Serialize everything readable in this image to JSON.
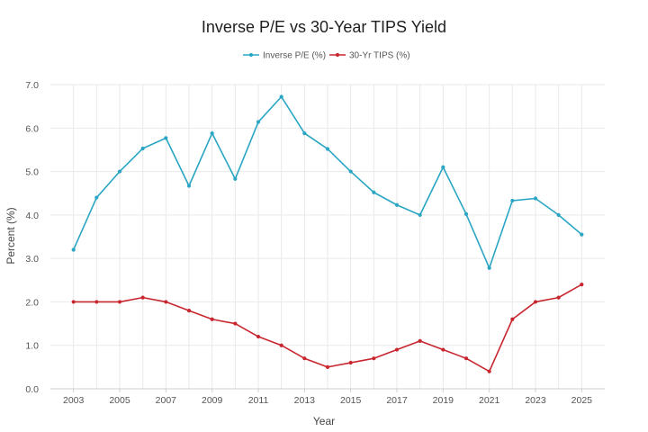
{
  "chart_data": {
    "type": "line",
    "title": "Inverse P/E vs 30-Year TIPS Yield",
    "xlabel": "Year",
    "ylabel": "Percent (%)",
    "x": [
      2003,
      2004,
      2005,
      2006,
      2007,
      2008,
      2009,
      2010,
      2011,
      2012,
      2013,
      2014,
      2015,
      2016,
      2017,
      2018,
      2019,
      2020,
      2021,
      2022,
      2023,
      2024,
      2025
    ],
    "xlim": [
      2002,
      2026
    ],
    "xticks": [
      "2003",
      "2005",
      "2007",
      "2009",
      "2011",
      "2013",
      "2015",
      "2017",
      "2019",
      "2021",
      "2023",
      "2025"
    ],
    "ylim": [
      0,
      7
    ],
    "yticks": [
      "0.0",
      "1.0",
      "2.0",
      "3.0",
      "4.0",
      "5.0",
      "6.0",
      "7.0"
    ],
    "grid": true,
    "legend_position": "top-center",
    "series": [
      {
        "name": "Inverse P/E (%)",
        "color": "#2aa6c4",
        "values": [
          3.2,
          4.4,
          5.0,
          5.53,
          5.77,
          4.67,
          5.88,
          4.83,
          6.14,
          6.72,
          5.88,
          5.52,
          5.0,
          4.52,
          4.23,
          4.0,
          5.1,
          4.02,
          2.78,
          4.33,
          4.38,
          4.0,
          3.55
        ]
      },
      {
        "name": "30-Yr TIPS (%)",
        "color": "#c8262f",
        "values": [
          2.0,
          2.0,
          2.0,
          2.1,
          2.0,
          1.8,
          1.6,
          1.5,
          1.2,
          1.0,
          0.7,
          0.5,
          0.6,
          0.7,
          0.9,
          1.1,
          0.9,
          0.7,
          0.4,
          1.6,
          2.0,
          2.1,
          2.4
        ]
      }
    ]
  }
}
